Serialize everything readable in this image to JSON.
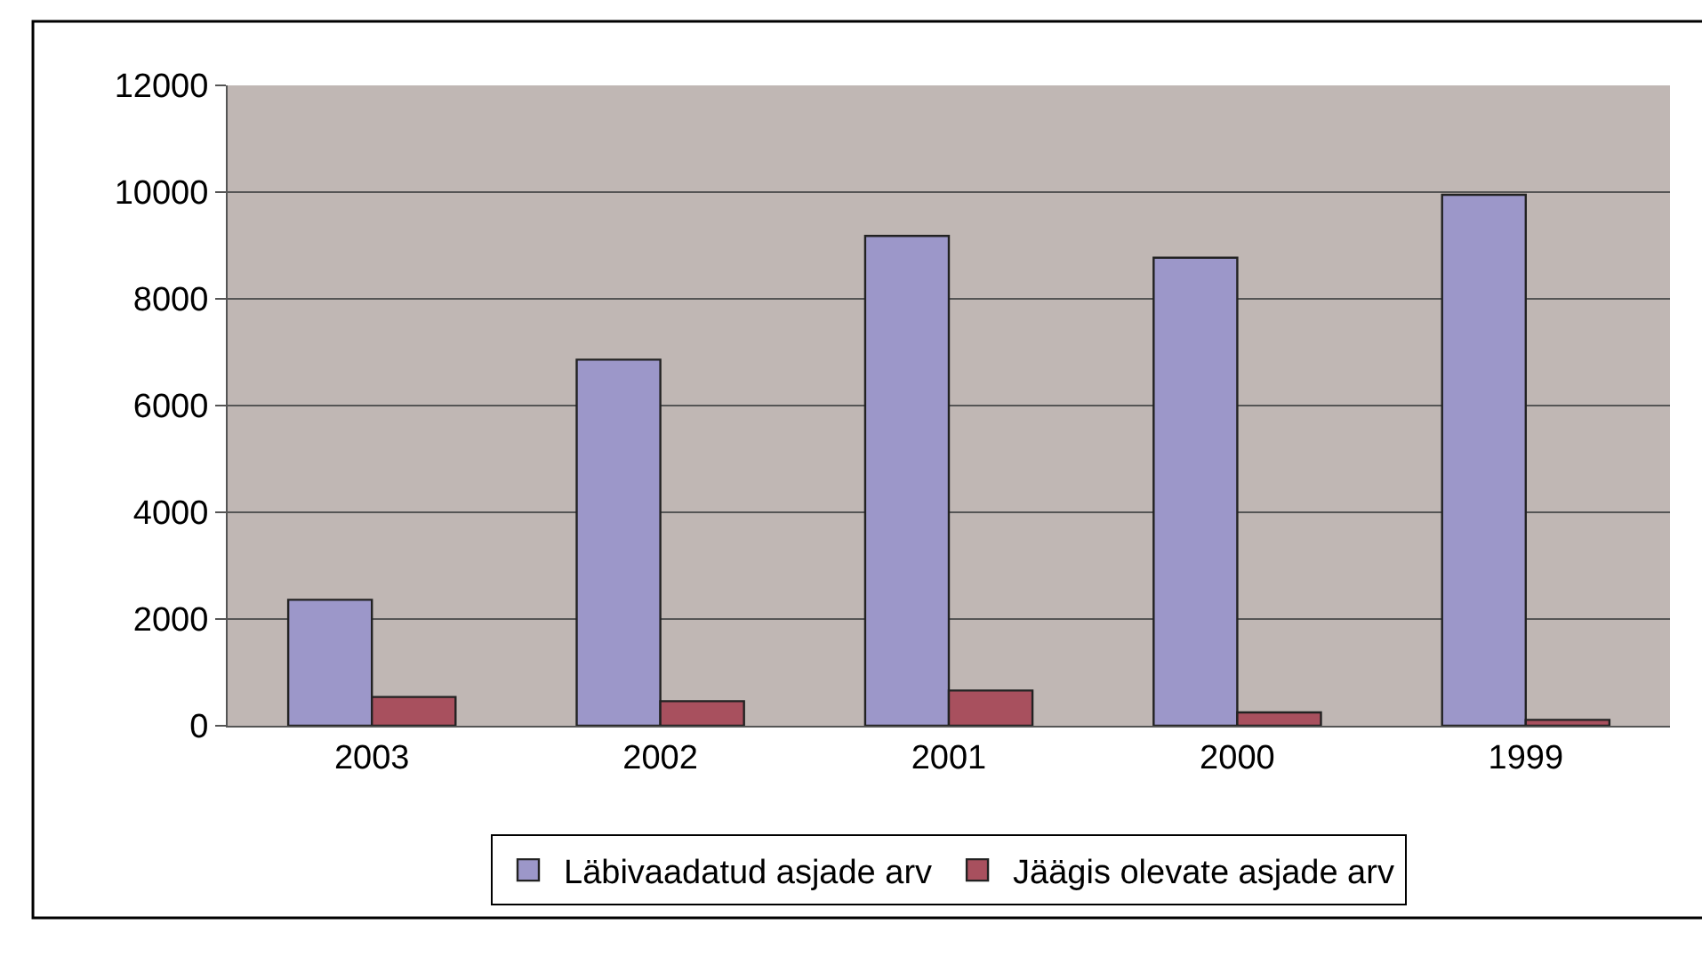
{
  "chart_data": {
    "type": "bar",
    "categories": [
      "2003",
      "2002",
      "2001",
      "2000",
      "1999"
    ],
    "series": [
      {
        "name": "Läbivaadatud asjade arv",
        "color": "#9c97c9",
        "values": [
          2360,
          6860,
          9180,
          8770,
          9950
        ]
      },
      {
        "name": "Jäägis olevate asjade arv",
        "color": "#a8505e",
        "values": [
          540,
          460,
          660,
          250,
          110
        ]
      }
    ],
    "ylim": [
      0,
      12000
    ],
    "yticks": [
      0,
      2000,
      4000,
      6000,
      8000,
      10000,
      12000
    ],
    "grid": "y",
    "legend": "bottom"
  }
}
